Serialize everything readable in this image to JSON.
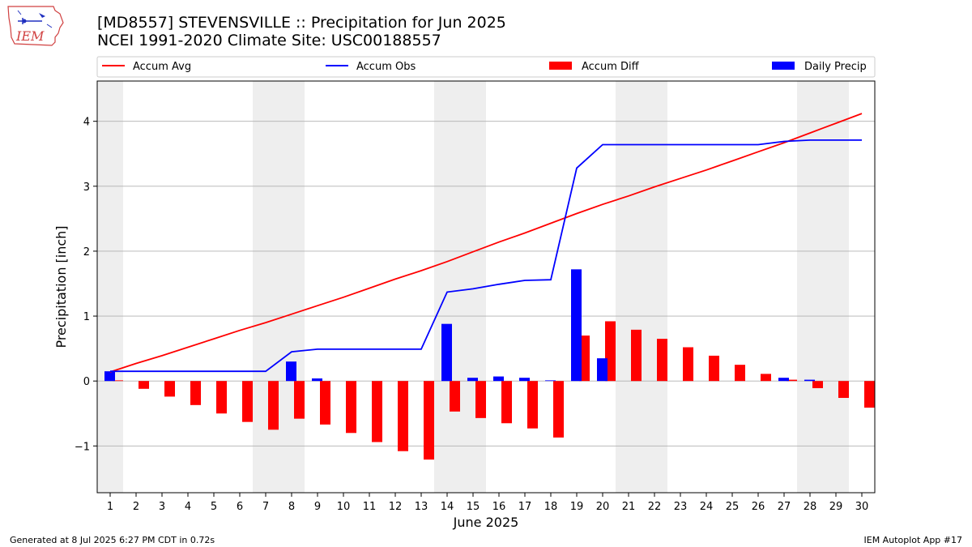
{
  "header": {
    "title_line1": "[MD8557] STEVENSVILLE :: Precipitation for Jun 2025",
    "title_line2": "NCEI 1991-2020 Climate Site: USC00188557",
    "logo_text": "IEM"
  },
  "footer": {
    "left": "Generated at 8 Jul 2025 6:27 PM CDT in 0.72s",
    "right": "IEM Autoplot App #17"
  },
  "colors": {
    "avg": "#ff0000",
    "obs": "#0000ff",
    "diff": "#ff0000",
    "daily": "#0000ff",
    "weekend": "#eeeeee",
    "grid": "#b0b0b0"
  },
  "chart_data": {
    "type": "bar",
    "xlabel": "June 2025",
    "ylabel": "Precipitation [inch]",
    "x": [
      1,
      2,
      3,
      4,
      5,
      6,
      7,
      8,
      9,
      10,
      11,
      12,
      13,
      14,
      15,
      16,
      17,
      18,
      19,
      20,
      21,
      22,
      23,
      24,
      25,
      26,
      27,
      28,
      29,
      30
    ],
    "xticks": [
      "1",
      "2",
      "3",
      "4",
      "5",
      "6",
      "7",
      "8",
      "9",
      "10",
      "11",
      "12",
      "13",
      "14",
      "15",
      "16",
      "17",
      "18",
      "19",
      "20",
      "21",
      "22",
      "23",
      "24",
      "25",
      "26",
      "27",
      "28",
      "29",
      "30"
    ],
    "yticks": [
      -1,
      0,
      1,
      2,
      3,
      4
    ],
    "ytick_labels": [
      "−1",
      "0",
      "1",
      "2",
      "3",
      "4"
    ],
    "ylim": [
      -1.72,
      4.62
    ],
    "xlim": [
      0.5,
      30.5
    ],
    "grid": "y",
    "weekend_shading": [
      [
        0.5,
        1.5
      ],
      [
        6.5,
        8.5
      ],
      [
        13.5,
        15.5
      ],
      [
        20.5,
        22.5
      ],
      [
        27.5,
        29.5
      ]
    ],
    "legend": {
      "placement": "above plot",
      "entries": [
        {
          "label": "Accum Avg",
          "kind": "line",
          "color": "#ff0000"
        },
        {
          "label": "Accum Obs",
          "kind": "line",
          "color": "#0000ff"
        },
        {
          "label": "Accum Diff",
          "kind": "bar",
          "color": "#ff0000"
        },
        {
          "label": "Daily Precip",
          "kind": "bar",
          "color": "#0000ff"
        }
      ]
    },
    "series": [
      {
        "name": "Accum Avg",
        "kind": "line",
        "values": [
          0.14,
          0.27,
          0.39,
          0.52,
          0.65,
          0.78,
          0.9,
          1.03,
          1.16,
          1.29,
          1.43,
          1.57,
          1.7,
          1.84,
          1.99,
          2.14,
          2.28,
          2.43,
          2.58,
          2.72,
          2.85,
          2.99,
          3.12,
          3.25,
          3.39,
          3.53,
          3.67,
          3.82,
          3.97,
          4.12
        ]
      },
      {
        "name": "Accum Obs",
        "kind": "line",
        "values": [
          0.15,
          0.15,
          0.15,
          0.15,
          0.15,
          0.15,
          0.15,
          0.45,
          0.49,
          0.49,
          0.49,
          0.49,
          0.49,
          1.37,
          1.42,
          1.49,
          1.55,
          1.56,
          3.28,
          3.64,
          3.64,
          3.64,
          3.64,
          3.64,
          3.64,
          3.64,
          3.69,
          3.71,
          3.71,
          3.71
        ]
      },
      {
        "name": "Accum Diff",
        "kind": "bar",
        "values": [
          0.01,
          -0.12,
          -0.24,
          -0.37,
          -0.5,
          -0.63,
          -0.75,
          -0.58,
          -0.67,
          -0.8,
          -0.94,
          -1.08,
          -1.21,
          -0.47,
          -0.57,
          -0.65,
          -0.73,
          -0.87,
          0.7,
          0.92,
          0.79,
          0.65,
          0.52,
          0.39,
          0.25,
          0.11,
          0.02,
          -0.11,
          -0.26,
          -0.41
        ]
      },
      {
        "name": "Daily Precip",
        "kind": "bar",
        "values": [
          0.15,
          0,
          0,
          0,
          0,
          0,
          0,
          0.3,
          0.04,
          0,
          0,
          0,
          0,
          0.88,
          0.05,
          0.07,
          0.05,
          0.01,
          1.72,
          0.35,
          0,
          0,
          0,
          0,
          0,
          0,
          0.05,
          0.02,
          0,
          0
        ]
      }
    ]
  }
}
